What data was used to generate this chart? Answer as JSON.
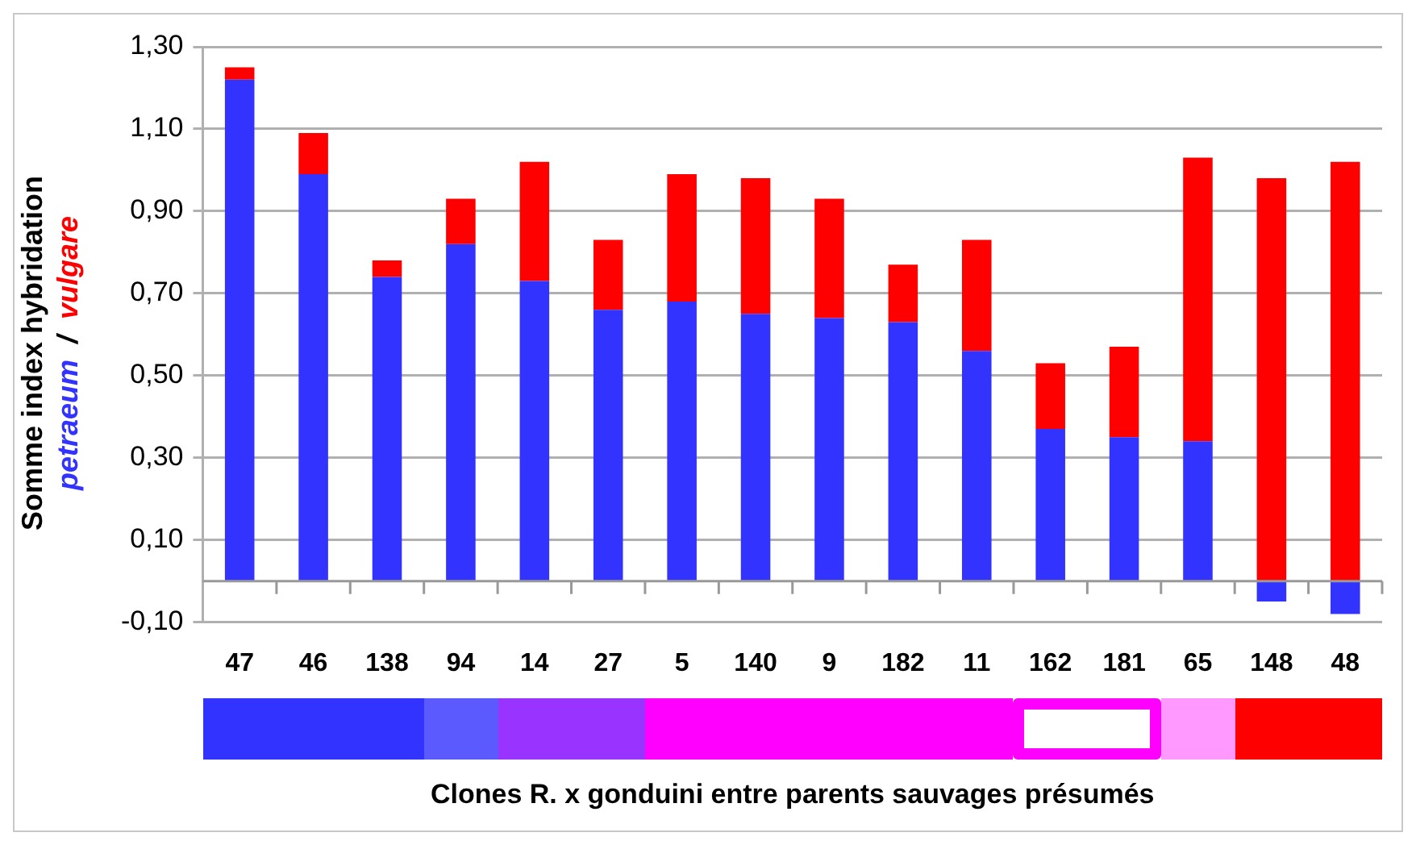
{
  "chart_data": {
    "type": "bar",
    "stacked": true,
    "ylabel": "Somme index hybridation\npetraeum  /  vulgare",
    "xlabel": "Clones R. x gonduini entre parents sauvages présumés",
    "categories": [
      "47",
      "46",
      "138",
      "94",
      "14",
      "27",
      "5",
      "140",
      "9",
      "182",
      "11",
      "162",
      "181",
      "65",
      "148",
      "48"
    ],
    "series": [
      {
        "color": "#3333ff",
        "values": [
          1.22,
          0.99,
          0.74,
          0.82,
          0.73,
          0.66,
          0.68,
          0.65,
          0.64,
          0.63,
          0.56,
          0.37,
          0.35,
          0.34,
          -0.05,
          -0.08
        ]
      },
      {
        "color": "#ff0000",
        "values": [
          0.03,
          0.1,
          0.04,
          0.11,
          0.29,
          0.17,
          0.31,
          0.33,
          0.29,
          0.14,
          0.27,
          0.16,
          0.22,
          0.69,
          0.98,
          1.02
        ]
      }
    ],
    "ylim": [
      -0.1,
      1.3
    ],
    "yticks": [
      {
        "value": -0.1,
        "label": "-0,10"
      },
      {
        "value": 0.1,
        "label": "0,10"
      },
      {
        "value": 0.3,
        "label": "0,30"
      },
      {
        "value": 0.5,
        "label": "0,50"
      },
      {
        "value": 0.7,
        "label": "0,70"
      },
      {
        "value": 0.9,
        "label": "0,90"
      },
      {
        "value": 1.1,
        "label": "1,10"
      },
      {
        "value": 1.3,
        "label": "1,30"
      }
    ],
    "grid": "y",
    "legend": false
  }
}
